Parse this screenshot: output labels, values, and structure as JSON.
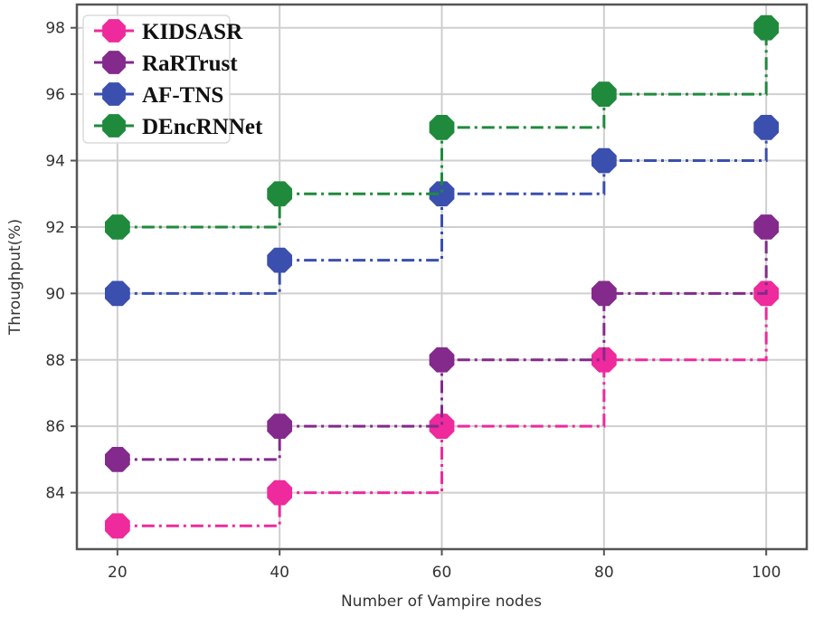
{
  "chart_data": {
    "type": "line",
    "subtype": "step-post",
    "title": "",
    "xlabel": "Number of Vampire nodes",
    "ylabel": "Throughput(%)",
    "x": [
      20,
      40,
      60,
      80,
      100
    ],
    "xticks": [
      "20",
      "40",
      "60",
      "80",
      "100"
    ],
    "yticks": [
      "84",
      "86",
      "88",
      "90",
      "92",
      "94",
      "96",
      "98"
    ],
    "xlim": [
      15,
      105
    ],
    "ylim": [
      82.3,
      98.7
    ],
    "grid": true,
    "legend_position": "upper left",
    "series": [
      {
        "name": "KIDSASR",
        "color": "#ee2a9c",
        "values": [
          83,
          84,
          86,
          88,
          90
        ]
      },
      {
        "name": "RaRTrust",
        "color": "#832a8c",
        "values": [
          85,
          86,
          88,
          90,
          92
        ]
      },
      {
        "name": "AF-TNS",
        "color": "#3a4fae",
        "values": [
          90,
          91,
          93,
          94,
          95
        ]
      },
      {
        "name": "DEncRNNet",
        "color": "#1f8a3c",
        "values": [
          92,
          93,
          95,
          96,
          98
        ]
      }
    ]
  }
}
